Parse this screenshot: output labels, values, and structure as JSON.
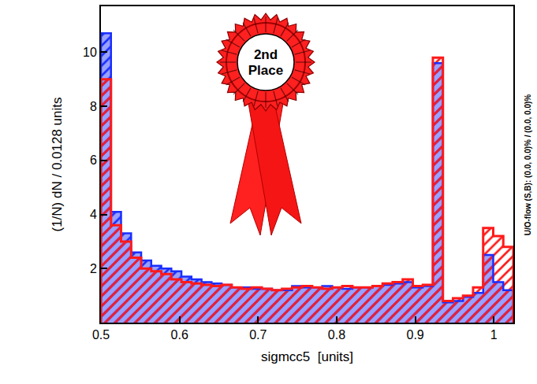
{
  "chart_data": {
    "type": "histogram",
    "x_label": "sigmcc5  [units]",
    "y_label": "(1/N) dN / 0.0128 units",
    "badge": "2nd Place",
    "annotations": [
      {
        "text": "U/O-flow (S,B): (0.0, 0.0)% / (0.0, 0.0)%"
      }
    ],
    "bins": [
      0.5,
      0.5128,
      0.5256,
      0.5384,
      0.5512,
      0.564,
      0.5768,
      0.5896,
      0.6024,
      0.6152,
      0.628,
      0.6408,
      0.6536,
      0.6664,
      0.6792,
      0.692,
      0.7048,
      0.7176,
      0.7304,
      0.7432,
      0.756,
      0.7688,
      0.7816,
      0.7944,
      0.8072,
      0.82,
      0.8328,
      0.8456,
      0.8584,
      0.8712,
      0.884,
      0.8968,
      0.9096,
      0.9224,
      0.9352,
      0.948,
      0.9608,
      0.9736,
      0.9864,
      0.9992,
      1.012,
      1.0248
    ],
    "series": [
      {
        "color": "#1a2eff",
        "marker": "filled",
        "values": [
          10.7,
          4.1,
          3.3,
          2.6,
          2.3,
          2.1,
          2.0,
          1.9,
          1.7,
          1.6,
          1.5,
          1.45,
          1.4,
          1.3,
          1.3,
          1.25,
          1.25,
          1.2,
          1.2,
          1.35,
          1.3,
          1.3,
          1.35,
          1.3,
          1.25,
          1.3,
          1.3,
          1.35,
          1.4,
          1.45,
          1.5,
          1.3,
          1.35,
          9.6,
          0.75,
          0.8,
          0.95,
          1.1,
          2.5,
          1.5,
          1.2
        ]
      },
      {
        "color": "#ff1a1a",
        "marker": "hatched",
        "values": [
          9.0,
          3.6,
          3.0,
          2.4,
          2.0,
          1.9,
          1.8,
          1.6,
          1.5,
          1.45,
          1.4,
          1.35,
          1.4,
          1.3,
          1.25,
          1.3,
          1.25,
          1.2,
          1.25,
          1.3,
          1.35,
          1.3,
          1.25,
          1.3,
          1.35,
          1.3,
          1.3,
          1.35,
          1.45,
          1.5,
          1.6,
          1.35,
          1.4,
          9.8,
          0.8,
          0.9,
          1.0,
          1.3,
          3.5,
          3.2,
          2.8
        ]
      }
    ],
    "xlim": [
      0.5,
      1.0248
    ],
    "xticks": [
      0.5,
      0.6,
      0.7,
      0.8,
      0.9,
      1
    ],
    "ylim": [
      0,
      11.7
    ],
    "yticks": [
      2,
      4,
      6,
      8,
      10
    ],
    "grid": false
  }
}
